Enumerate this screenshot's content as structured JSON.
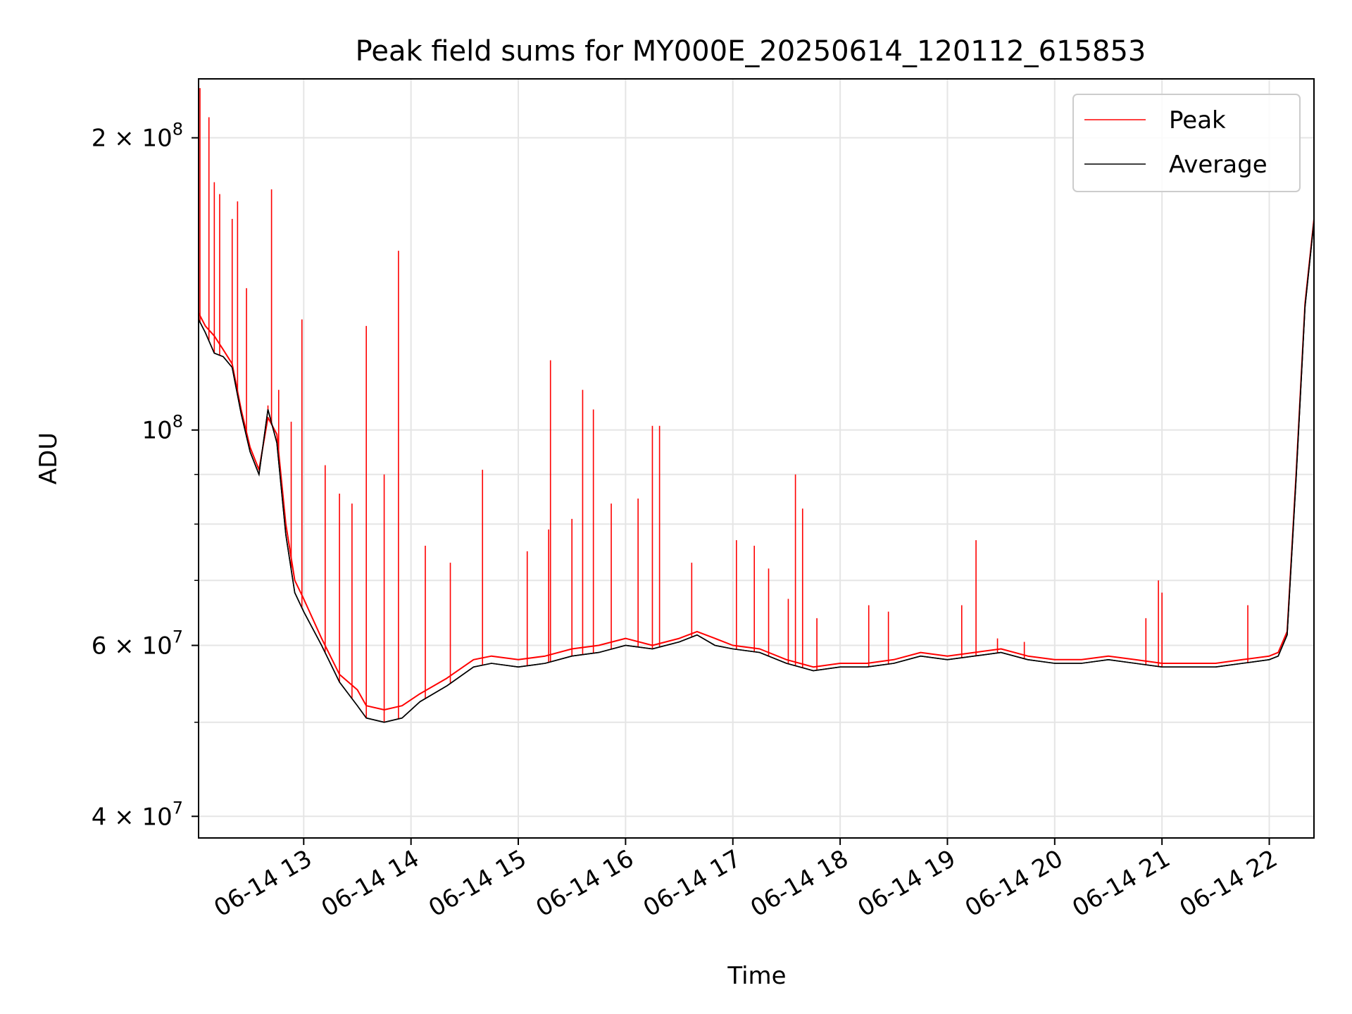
{
  "chart_data": {
    "type": "line",
    "title": "Peak field sums for MY000E_20250614_120112_615853",
    "xlabel": "Time",
    "ylabel": "ADU",
    "y_scale": "log",
    "ylim": [
      38000000,
      230000000
    ],
    "xlim": [
      "2025-06-14T12:01:12",
      "2025-06-14T22:25:00"
    ],
    "grid": true,
    "legend_position": "upper-right",
    "x_ticks": [
      {
        "label": "06-14 13",
        "t": "2025-06-14T13:00:00"
      },
      {
        "label": "06-14 14",
        "t": "2025-06-14T14:00:00"
      },
      {
        "label": "06-14 15",
        "t": "2025-06-14T15:00:00"
      },
      {
        "label": "06-14 16",
        "t": "2025-06-14T16:00:00"
      },
      {
        "label": "06-14 17",
        "t": "2025-06-14T17:00:00"
      },
      {
        "label": "06-14 18",
        "t": "2025-06-14T18:00:00"
      },
      {
        "label": "06-14 19",
        "t": "2025-06-14T19:00:00"
      },
      {
        "label": "06-14 20",
        "t": "2025-06-14T20:00:00"
      },
      {
        "label": "06-14 21",
        "t": "2025-06-14T21:00:00"
      },
      {
        "label": "06-14 22",
        "t": "2025-06-14T22:00:00"
      }
    ],
    "y_ticks_major": [
      {
        "mantissa": "4",
        "exp": "7",
        "value": 40000000
      },
      {
        "mantissa": "6",
        "exp": "7",
        "value": 60000000
      },
      {
        "mantissa": "",
        "exp": "8",
        "value": 100000000
      },
      {
        "mantissa": "2",
        "exp": "8",
        "value": 200000000
      }
    ],
    "y_ticks_minor": [
      50000000,
      70000000,
      80000000,
      90000000
    ],
    "series": [
      {
        "name": "Peak",
        "color": "#ff0000",
        "x": [
          "2025-06-14T12:01:12",
          "2025-06-14T12:05:00",
          "2025-06-14T12:10:00",
          "2025-06-14T12:15:00",
          "2025-06-14T12:20:00",
          "2025-06-14T12:25:00",
          "2025-06-14T12:30:00",
          "2025-06-14T12:35:00",
          "2025-06-14T12:40:00",
          "2025-06-14T12:45:00",
          "2025-06-14T12:50:00",
          "2025-06-14T12:55:00",
          "2025-06-14T13:00:00",
          "2025-06-14T13:10:00",
          "2025-06-14T13:20:00",
          "2025-06-14T13:30:00",
          "2025-06-14T13:35:00",
          "2025-06-14T13:45:00",
          "2025-06-14T13:55:00",
          "2025-06-14T14:05:00",
          "2025-06-14T14:20:00",
          "2025-06-14T14:35:00",
          "2025-06-14T14:45:00",
          "2025-06-14T15:00:00",
          "2025-06-14T15:15:00",
          "2025-06-14T15:30:00",
          "2025-06-14T15:45:00",
          "2025-06-14T16:00:00",
          "2025-06-14T16:15:00",
          "2025-06-14T16:30:00",
          "2025-06-14T16:40:00",
          "2025-06-14T16:50:00",
          "2025-06-14T17:00:00",
          "2025-06-14T17:15:00",
          "2025-06-14T17:30:00",
          "2025-06-14T17:45:00",
          "2025-06-14T18:00:00",
          "2025-06-14T18:15:00",
          "2025-06-14T18:30:00",
          "2025-06-14T18:45:00",
          "2025-06-14T19:00:00",
          "2025-06-14T19:15:00",
          "2025-06-14T19:30:00",
          "2025-06-14T19:45:00",
          "2025-06-14T20:00:00",
          "2025-06-14T20:15:00",
          "2025-06-14T20:30:00",
          "2025-06-14T20:45:00",
          "2025-06-14T21:00:00",
          "2025-06-14T21:15:00",
          "2025-06-14T21:30:00",
          "2025-06-14T21:45:00",
          "2025-06-14T22:00:00",
          "2025-06-14T22:05:00",
          "2025-06-14T22:10:00",
          "2025-06-14T22:15:00",
          "2025-06-14T22:20:00",
          "2025-06-14T22:25:00"
        ],
        "y": [
          132000000,
          128000000,
          125000000,
          121000000,
          117000000,
          105000000,
          96000000,
          91000000,
          103000000,
          99000000,
          80000000,
          70000000,
          67000000,
          61000000,
          56000000,
          54000000,
          52000000,
          51500000,
          52000000,
          53500000,
          55500000,
          58000000,
          58500000,
          58000000,
          58500000,
          59500000,
          60000000,
          61000000,
          60000000,
          61000000,
          62000000,
          61000000,
          60000000,
          59500000,
          58000000,
          57000000,
          57500000,
          57500000,
          58000000,
          59000000,
          58500000,
          59000000,
          59500000,
          58500000,
          58000000,
          58000000,
          58500000,
          58000000,
          57500000,
          57500000,
          57500000,
          58000000,
          58500000,
          59000000,
          62000000,
          90000000,
          135000000,
          165000000
        ],
        "spikes": [
          [
            "2025-06-14T12:02:00",
            225000000
          ],
          [
            "2025-06-14T12:07:00",
            210000000
          ],
          [
            "2025-06-14T12:10:00",
            180000000
          ],
          [
            "2025-06-14T12:13:00",
            175000000
          ],
          [
            "2025-06-14T12:20:00",
            165000000
          ],
          [
            "2025-06-14T12:23:00",
            172000000
          ],
          [
            "2025-06-14T12:28:00",
            140000000
          ],
          [
            "2025-06-14T12:40:00",
            106000000
          ],
          [
            "2025-06-14T12:42:00",
            177000000
          ],
          [
            "2025-06-14T12:46:00",
            110000000
          ],
          [
            "2025-06-14T12:53:00",
            102000000
          ],
          [
            "2025-06-14T12:59:00",
            130000000
          ],
          [
            "2025-06-14T13:12:00",
            92000000
          ],
          [
            "2025-06-14T13:20:00",
            86000000
          ],
          [
            "2025-06-14T13:27:00",
            84000000
          ],
          [
            "2025-06-14T13:35:00",
            128000000
          ],
          [
            "2025-06-14T13:45:00",
            90000000
          ],
          [
            "2025-06-14T13:53:00",
            153000000
          ],
          [
            "2025-06-14T14:08:00",
            76000000
          ],
          [
            "2025-06-14T14:22:00",
            73000000
          ],
          [
            "2025-06-14T14:40:00",
            91000000
          ],
          [
            "2025-06-14T15:05:00",
            75000000
          ],
          [
            "2025-06-14T15:17:00",
            79000000
          ],
          [
            "2025-06-14T15:18:00",
            118000000
          ],
          [
            "2025-06-14T15:30:00",
            81000000
          ],
          [
            "2025-06-14T15:36:00",
            110000000
          ],
          [
            "2025-06-14T15:42:00",
            105000000
          ],
          [
            "2025-06-14T15:52:00",
            84000000
          ],
          [
            "2025-06-14T16:07:00",
            85000000
          ],
          [
            "2025-06-14T16:15:00",
            101000000
          ],
          [
            "2025-06-14T16:19:00",
            101000000
          ],
          [
            "2025-06-14T16:37:00",
            73000000
          ],
          [
            "2025-06-14T17:02:00",
            77000000
          ],
          [
            "2025-06-14T17:12:00",
            76000000
          ],
          [
            "2025-06-14T17:20:00",
            72000000
          ],
          [
            "2025-06-14T17:31:00",
            67000000
          ],
          [
            "2025-06-14T17:35:00",
            90000000
          ],
          [
            "2025-06-14T17:39:00",
            83000000
          ],
          [
            "2025-06-14T17:47:00",
            64000000
          ],
          [
            "2025-06-14T18:16:00",
            66000000
          ],
          [
            "2025-06-14T18:27:00",
            65000000
          ],
          [
            "2025-06-14T19:08:00",
            66000000
          ],
          [
            "2025-06-14T19:16:00",
            77000000
          ],
          [
            "2025-06-14T19:28:00",
            61000000
          ],
          [
            "2025-06-14T19:43:00",
            60500000
          ],
          [
            "2025-06-14T20:51:00",
            64000000
          ],
          [
            "2025-06-14T20:58:00",
            70000000
          ],
          [
            "2025-06-14T21:00:00",
            68000000
          ],
          [
            "2025-06-14T21:48:00",
            66000000
          ]
        ]
      },
      {
        "name": "Average",
        "color": "#000000",
        "x": [
          "2025-06-14T12:01:12",
          "2025-06-14T12:05:00",
          "2025-06-14T12:10:00",
          "2025-06-14T12:15:00",
          "2025-06-14T12:20:00",
          "2025-06-14T12:25:00",
          "2025-06-14T12:30:00",
          "2025-06-14T12:35:00",
          "2025-06-14T12:40:00",
          "2025-06-14T12:45:00",
          "2025-06-14T12:50:00",
          "2025-06-14T12:55:00",
          "2025-06-14T13:00:00",
          "2025-06-14T13:10:00",
          "2025-06-14T13:20:00",
          "2025-06-14T13:30:00",
          "2025-06-14T13:35:00",
          "2025-06-14T13:45:00",
          "2025-06-14T13:55:00",
          "2025-06-14T14:05:00",
          "2025-06-14T14:20:00",
          "2025-06-14T14:35:00",
          "2025-06-14T14:45:00",
          "2025-06-14T15:00:00",
          "2025-06-14T15:15:00",
          "2025-06-14T15:30:00",
          "2025-06-14T15:45:00",
          "2025-06-14T16:00:00",
          "2025-06-14T16:15:00",
          "2025-06-14T16:30:00",
          "2025-06-14T16:40:00",
          "2025-06-14T16:50:00",
          "2025-06-14T17:00:00",
          "2025-06-14T17:15:00",
          "2025-06-14T17:30:00",
          "2025-06-14T17:45:00",
          "2025-06-14T18:00:00",
          "2025-06-14T18:15:00",
          "2025-06-14T18:30:00",
          "2025-06-14T18:45:00",
          "2025-06-14T19:00:00",
          "2025-06-14T19:15:00",
          "2025-06-14T19:30:00",
          "2025-06-14T19:45:00",
          "2025-06-14T20:00:00",
          "2025-06-14T20:15:00",
          "2025-06-14T20:30:00",
          "2025-06-14T20:45:00",
          "2025-06-14T21:00:00",
          "2025-06-14T21:15:00",
          "2025-06-14T21:30:00",
          "2025-06-14T21:45:00",
          "2025-06-14T22:00:00",
          "2025-06-14T22:05:00",
          "2025-06-14T22:10:00",
          "2025-06-14T22:15:00",
          "2025-06-14T22:20:00",
          "2025-06-14T22:25:00"
        ],
        "y": [
          130000000,
          126000000,
          120000000,
          119000000,
          116000000,
          104000000,
          95000000,
          90000000,
          105000000,
          97000000,
          78000000,
          68000000,
          65000000,
          60000000,
          55000000,
          52000000,
          50500000,
          50000000,
          50500000,
          52500000,
          54500000,
          57000000,
          57500000,
          57000000,
          57500000,
          58500000,
          59000000,
          60000000,
          59500000,
          60500000,
          61500000,
          60000000,
          59500000,
          59000000,
          57500000,
          56500000,
          57000000,
          57000000,
          57500000,
          58500000,
          58000000,
          58500000,
          59000000,
          58000000,
          57500000,
          57500000,
          58000000,
          57500000,
          57000000,
          57000000,
          57000000,
          57500000,
          58000000,
          58500000,
          61500000,
          89000000,
          134000000,
          164000000
        ]
      }
    ]
  }
}
